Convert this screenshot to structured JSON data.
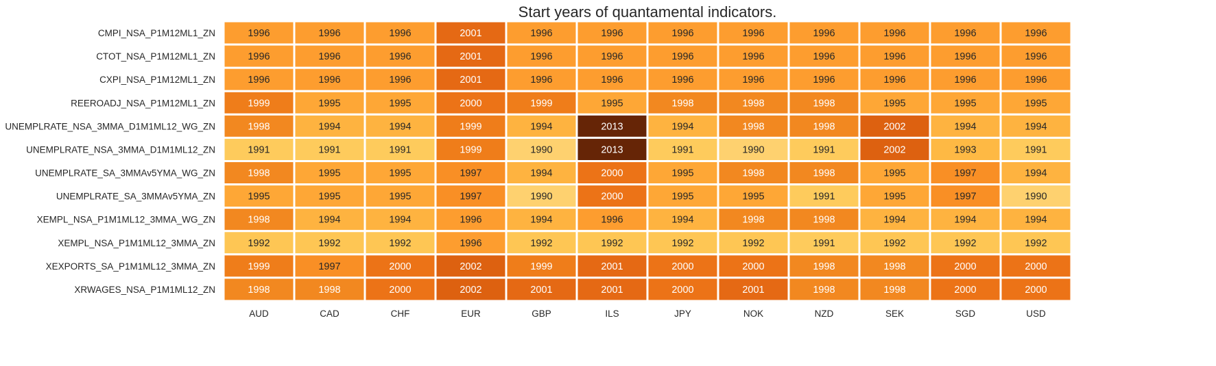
{
  "chart_data": {
    "type": "heatmap",
    "title": "Start years of quantamental indicators.",
    "colormap": "YlOrBr",
    "columns": [
      "AUD",
      "CAD",
      "CHF",
      "EUR",
      "GBP",
      "ILS",
      "JPY",
      "NOK",
      "NZD",
      "SEK",
      "SGD",
      "USD"
    ],
    "rows": [
      "CMPI_NSA_P1M12ML1_ZN",
      "CTOT_NSA_P1M12ML1_ZN",
      "CXPI_NSA_P1M12ML1_ZN",
      "REEROADJ_NSA_P1M12ML1_ZN",
      "UNEMPLRATE_NSA_3MMA_D1M1ML12_WG_ZN",
      "UNEMPLRATE_NSA_3MMA_D1M1ML12_ZN",
      "UNEMPLRATE_SA_3MMAv5YMA_WG_ZN",
      "UNEMPLRATE_SA_3MMAv5YMA_ZN",
      "XEMPL_NSA_P1M1ML12_3MMA_WG_ZN",
      "XEMPL_NSA_P1M1ML12_3MMA_ZN",
      "XEXPORTS_SA_P1M1ML12_3MMA_ZN",
      "XRWAGES_NSA_P1M1ML12_ZN"
    ],
    "values": [
      [
        1996,
        1996,
        1996,
        2001,
        1996,
        1996,
        1996,
        1996,
        1996,
        1996,
        1996,
        1996
      ],
      [
        1996,
        1996,
        1996,
        2001,
        1996,
        1996,
        1996,
        1996,
        1996,
        1996,
        1996,
        1996
      ],
      [
        1996,
        1996,
        1996,
        2001,
        1996,
        1996,
        1996,
        1996,
        1996,
        1996,
        1996,
        1996
      ],
      [
        1999,
        1995,
        1995,
        2000,
        1999,
        1995,
        1998,
        1998,
        1998,
        1995,
        1995,
        1995
      ],
      [
        1998,
        1994,
        1994,
        1999,
        1994,
        2013,
        1994,
        1998,
        1998,
        2002,
        1994,
        1994
      ],
      [
        1991,
        1991,
        1991,
        1999,
        1990,
        2013,
        1991,
        1990,
        1991,
        2002,
        1993,
        1991
      ],
      [
        1998,
        1995,
        1995,
        1997,
        1994,
        2000,
        1995,
        1998,
        1998,
        1995,
        1997,
        1994
      ],
      [
        1995,
        1995,
        1995,
        1997,
        1990,
        2000,
        1995,
        1995,
        1991,
        1995,
        1997,
        1990
      ],
      [
        1998,
        1994,
        1994,
        1996,
        1994,
        1996,
        1994,
        1998,
        1998,
        1994,
        1994,
        1994
      ],
      [
        1992,
        1992,
        1992,
        1996,
        1992,
        1992,
        1992,
        1992,
        1991,
        1992,
        1992,
        1992
      ],
      [
        1999,
        1997,
        2000,
        2002,
        1999,
        2001,
        2000,
        2000,
        1998,
        1998,
        2000,
        2000
      ],
      [
        1998,
        1998,
        2000,
        2002,
        2001,
        2001,
        2000,
        2001,
        1998,
        1998,
        2000,
        2000
      ]
    ],
    "colorbar": false
  }
}
